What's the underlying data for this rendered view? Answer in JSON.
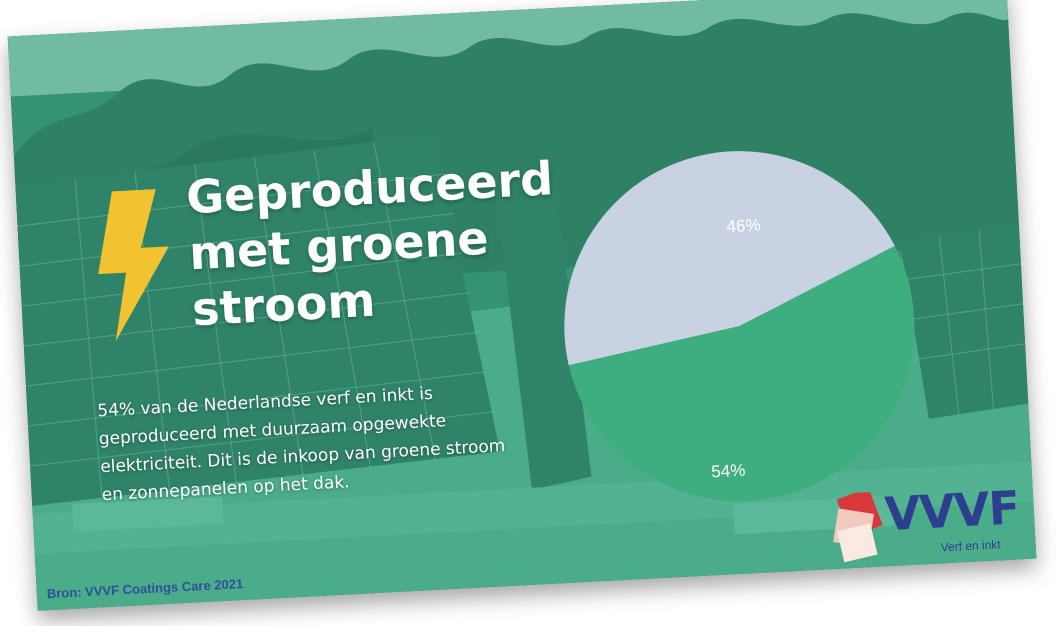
{
  "slide": {
    "title_lines": [
      "Geproduceerd",
      "met groene",
      "stroom"
    ],
    "description": "54% van de Nederlandse verf en inkt is geproduceerd met duurzaam opgewekte elektriciteit. Dit is de inkoop van groene stroom en zonnepanelen op het dak.",
    "source": "Bron: VVVF Coatings Care 2021",
    "icon": "lightning-bolt-icon",
    "colors": {
      "bolt": "#f2c230",
      "overlay": "#30a07d",
      "source_text": "#2f4f9c"
    }
  },
  "logo": {
    "wordmark": "VVVF",
    "tagline": "Verf en inkt"
  },
  "chart_data": {
    "type": "pie",
    "slices": [
      {
        "label": "46%",
        "value": 46,
        "color": "#c8d2e2"
      },
      {
        "label": "54%",
        "value": 54,
        "color": "#3fae7e"
      }
    ]
  }
}
